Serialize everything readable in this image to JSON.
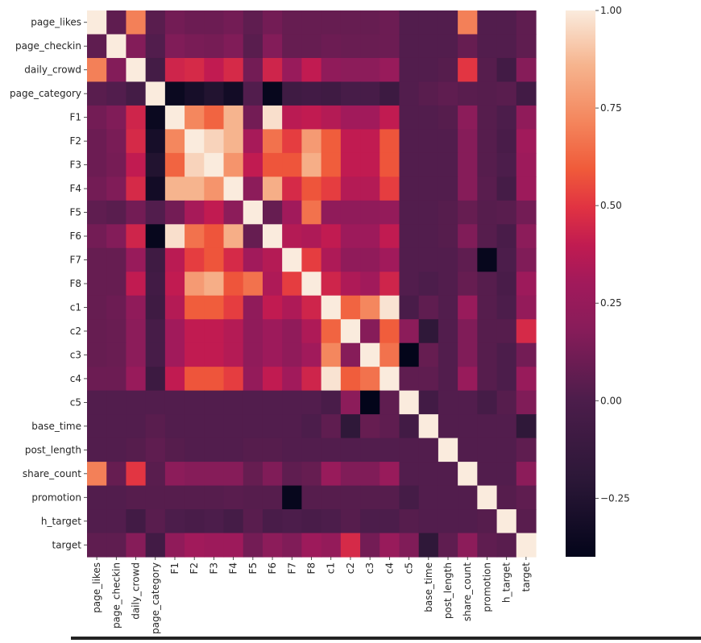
{
  "chart_data": {
    "type": "heatmap",
    "title": "",
    "xlabel": "",
    "ylabel": "",
    "labels": [
      "page_likes",
      "page_checkin",
      "daily_crowd",
      "page_category",
      "F1",
      "F2",
      "F3",
      "F4",
      "F5",
      "F6",
      "F7",
      "F8",
      "c1",
      "c2",
      "c3",
      "c4",
      "c5",
      "base_time",
      "post_length",
      "share_count",
      "promotion",
      "h_target",
      "target"
    ],
    "colorbar": {
      "min": -0.4,
      "max": 1.0,
      "ticks": [
        1.0,
        0.75,
        0.5,
        0.25,
        0.0,
        -0.25
      ],
      "tick_labels": [
        "1.00",
        "0.75",
        "0.50",
        "0.25",
        "0.00",
        "−0.25"
      ],
      "position": "right"
    },
    "matrix": [
      [
        1.0,
        0.06,
        0.7,
        0.04,
        0.12,
        0.1,
        0.1,
        0.12,
        0.06,
        0.12,
        0.08,
        0.08,
        0.08,
        0.08,
        0.08,
        0.1,
        0.02,
        0.02,
        0.02,
        0.7,
        0.02,
        0.02,
        0.06
      ],
      [
        0.06,
        1.0,
        0.17,
        0.02,
        0.16,
        0.14,
        0.13,
        0.16,
        0.04,
        0.17,
        0.08,
        0.08,
        0.1,
        0.09,
        0.09,
        0.1,
        0.02,
        0.02,
        0.02,
        0.08,
        0.02,
        0.02,
        0.06
      ],
      [
        0.7,
        0.17,
        1.0,
        -0.05,
        0.44,
        0.46,
        0.4,
        0.46,
        0.12,
        0.44,
        0.26,
        0.4,
        0.22,
        0.2,
        0.2,
        0.26,
        0.02,
        0.02,
        0.03,
        0.5,
        0.03,
        -0.06,
        0.18
      ],
      [
        0.04,
        0.02,
        -0.05,
        1.0,
        -0.36,
        -0.3,
        -0.25,
        -0.32,
        0.02,
        -0.38,
        -0.08,
        -0.06,
        -0.08,
        -0.03,
        -0.03,
        -0.1,
        0.02,
        0.04,
        0.06,
        0.04,
        0.03,
        0.04,
        -0.06
      ],
      [
        0.12,
        0.16,
        0.44,
        -0.36,
        1.0,
        0.72,
        0.62,
        0.86,
        0.12,
        0.97,
        0.38,
        0.4,
        0.36,
        0.3,
        0.3,
        0.4,
        0.02,
        0.02,
        0.03,
        0.2,
        0.03,
        0.0,
        0.22
      ],
      [
        0.1,
        0.14,
        0.46,
        -0.3,
        0.72,
        1.0,
        0.94,
        0.86,
        0.32,
        0.66,
        0.52,
        0.78,
        0.6,
        0.4,
        0.4,
        0.58,
        0.02,
        0.02,
        0.02,
        0.18,
        0.03,
        -0.02,
        0.3
      ],
      [
        0.1,
        0.13,
        0.4,
        -0.25,
        0.62,
        0.94,
        1.0,
        0.76,
        0.4,
        0.58,
        0.58,
        0.84,
        0.6,
        0.4,
        0.4,
        0.58,
        0.02,
        0.02,
        0.02,
        0.18,
        0.03,
        0.0,
        0.28
      ],
      [
        0.12,
        0.16,
        0.46,
        -0.32,
        0.86,
        0.86,
        0.76,
        1.0,
        0.2,
        0.84,
        0.46,
        0.58,
        0.52,
        0.36,
        0.36,
        0.52,
        0.02,
        0.02,
        0.02,
        0.18,
        0.04,
        -0.04,
        0.28
      ],
      [
        0.06,
        0.04,
        0.12,
        0.02,
        0.12,
        0.32,
        0.4,
        0.2,
        1.0,
        0.08,
        0.3,
        0.66,
        0.22,
        0.22,
        0.22,
        0.24,
        0.02,
        0.02,
        0.03,
        0.08,
        0.03,
        0.04,
        0.12
      ],
      [
        0.12,
        0.17,
        0.44,
        -0.38,
        0.97,
        0.66,
        0.58,
        0.84,
        0.08,
        1.0,
        0.36,
        0.34,
        0.4,
        0.28,
        0.28,
        0.4,
        0.02,
        0.02,
        0.03,
        0.16,
        0.03,
        -0.02,
        0.2
      ],
      [
        0.08,
        0.08,
        0.26,
        -0.08,
        0.38,
        0.52,
        0.58,
        0.46,
        0.3,
        0.36,
        1.0,
        0.52,
        0.34,
        0.22,
        0.22,
        0.3,
        0.02,
        0.02,
        0.02,
        0.06,
        -0.38,
        0.0,
        0.16
      ],
      [
        0.08,
        0.08,
        0.4,
        -0.06,
        0.4,
        0.78,
        0.84,
        0.58,
        0.66,
        0.34,
        0.52,
        1.0,
        0.44,
        0.34,
        0.3,
        0.44,
        0.02,
        0.0,
        0.02,
        0.08,
        0.03,
        -0.02,
        0.28
      ],
      [
        0.08,
        0.1,
        0.22,
        -0.08,
        0.36,
        0.6,
        0.6,
        0.52,
        0.22,
        0.4,
        0.34,
        0.44,
        1.0,
        0.62,
        0.72,
        0.98,
        -0.02,
        0.06,
        0.02,
        0.26,
        0.03,
        0.0,
        0.24
      ],
      [
        0.08,
        0.09,
        0.2,
        -0.03,
        0.3,
        0.4,
        0.4,
        0.36,
        0.22,
        0.28,
        0.22,
        0.34,
        0.62,
        1.0,
        0.18,
        0.6,
        0.2,
        -0.18,
        0.02,
        0.16,
        0.03,
        0.03,
        0.46
      ],
      [
        0.08,
        0.09,
        0.2,
        -0.03,
        0.3,
        0.4,
        0.4,
        0.36,
        0.22,
        0.28,
        0.22,
        0.3,
        0.72,
        0.18,
        1.0,
        0.66,
        -0.4,
        0.08,
        0.02,
        0.16,
        0.03,
        0.0,
        0.12
      ],
      [
        0.1,
        0.1,
        0.26,
        -0.1,
        0.4,
        0.58,
        0.58,
        0.52,
        0.24,
        0.4,
        0.3,
        0.44,
        0.98,
        0.6,
        0.66,
        1.0,
        0.06,
        0.06,
        0.02,
        0.26,
        0.03,
        0.0,
        0.26
      ],
      [
        0.02,
        0.02,
        0.02,
        0.02,
        0.02,
        0.02,
        0.02,
        0.02,
        0.02,
        0.02,
        0.02,
        0.02,
        -0.02,
        0.2,
        -0.4,
        0.06,
        1.0,
        -0.06,
        0.02,
        0.02,
        -0.04,
        0.03,
        0.16
      ],
      [
        0.02,
        0.02,
        0.02,
        0.04,
        0.02,
        0.02,
        0.02,
        0.02,
        0.02,
        0.02,
        0.02,
        0.0,
        0.06,
        -0.18,
        0.08,
        0.06,
        -0.06,
        1.0,
        0.02,
        0.02,
        0.02,
        0.02,
        -0.18
      ],
      [
        0.02,
        0.02,
        0.03,
        0.06,
        0.03,
        0.02,
        0.02,
        0.02,
        0.03,
        0.03,
        0.02,
        0.02,
        0.02,
        0.02,
        0.02,
        0.02,
        0.02,
        0.02,
        1.0,
        0.02,
        0.02,
        0.02,
        0.06
      ],
      [
        0.7,
        0.08,
        0.5,
        0.04,
        0.2,
        0.18,
        0.18,
        0.18,
        0.08,
        0.16,
        0.06,
        0.08,
        0.26,
        0.16,
        0.16,
        0.26,
        0.02,
        0.02,
        0.02,
        1.0,
        0.02,
        0.02,
        0.2
      ],
      [
        0.02,
        0.02,
        0.03,
        0.03,
        0.03,
        0.03,
        0.03,
        0.04,
        0.03,
        0.03,
        -0.38,
        0.03,
        0.03,
        0.03,
        0.03,
        0.03,
        -0.04,
        0.02,
        0.02,
        0.02,
        1.0,
        0.03,
        0.06
      ],
      [
        0.02,
        0.02,
        -0.06,
        0.04,
        0.0,
        -0.02,
        0.0,
        -0.04,
        0.04,
        -0.02,
        0.0,
        -0.02,
        0.0,
        0.03,
        0.0,
        0.0,
        0.03,
        0.02,
        0.02,
        0.02,
        0.03,
        1.0,
        0.04
      ],
      [
        0.06,
        0.06,
        0.18,
        -0.06,
        0.22,
        0.3,
        0.28,
        0.28,
        0.12,
        0.2,
        0.16,
        0.28,
        0.24,
        0.46,
        0.12,
        0.26,
        0.16,
        -0.18,
        0.06,
        0.2,
        0.06,
        0.04,
        1.0
      ]
    ]
  }
}
